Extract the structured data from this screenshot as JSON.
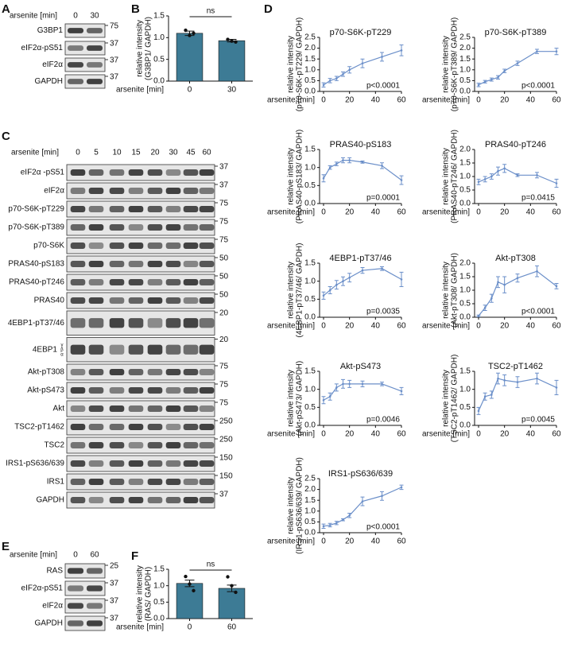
{
  "letters": [
    "A",
    "B",
    "C",
    "D",
    "E",
    "F"
  ],
  "blots": [
    {
      "lane_header": "arsenite [min]",
      "lanes": [
        "0",
        "30"
      ],
      "rows": [
        {
          "label": "G3BP1",
          "mw": "75"
        },
        {
          "label": "eIF2α-pS51",
          "mw": "37"
        },
        {
          "label": "eIF2α",
          "mw": "37"
        },
        {
          "label": "GAPDH",
          "mw": "37"
        }
      ]
    },
    {
      "lane_header": "arsenite [min]",
      "lanes": [
        "0",
        "5",
        "10",
        "15",
        "20",
        "30",
        "45",
        "60"
      ],
      "rows": [
        {
          "label": "eIF2α -pS51",
          "mw": "37"
        },
        {
          "label": "eIF2α",
          "mw": "37"
        },
        {
          "label": "p70-S6K-pT229",
          "mw": "75"
        },
        {
          "label": "p70-S6K-pT389",
          "mw": "75"
        },
        {
          "label": "p70-S6K",
          "mw": "75"
        },
        {
          "label": "PRAS40-pS183",
          "mw": "50"
        },
        {
          "label": "PRAS40-pT246",
          "mw": "50"
        },
        {
          "label": "PRAS40",
          "mw": "50"
        },
        {
          "label": "4EBP1-pT37/46",
          "mw": "20"
        },
        {
          "label": "4EBP1",
          "sublabels": [
            "γ",
            "β",
            "α"
          ],
          "mw": "20"
        },
        {
          "label": "Akt-pT308",
          "mw": "75"
        },
        {
          "label": "Akt-pS473",
          "mw": "75"
        },
        {
          "label": "Akt",
          "mw": "75"
        },
        {
          "label": "TSC2-pT1462",
          "mw": "250"
        },
        {
          "label": "TSC2",
          "mw": "250"
        },
        {
          "label": "IRS1-pS636/639",
          "mw": "150"
        },
        {
          "label": "IRS1",
          "mw": "150"
        },
        {
          "label": "GAPDH",
          "mw": "37"
        }
      ]
    },
    {
      "lane_header": "arsenite [min]",
      "lanes": [
        "0",
        "60"
      ],
      "rows": [
        {
          "label": "RAS",
          "mw": "25"
        },
        {
          "label": "eIF2α-pS51",
          "mw": "37"
        },
        {
          "label": "eIF2α",
          "mw": "37"
        },
        {
          "label": "GAPDH",
          "mw": "37"
        }
      ]
    }
  ],
  "chart_data": [
    {
      "type": "bar",
      "ylabel": [
        "relative intensity",
        "(G3BP1/ GAPDH)"
      ],
      "xlabel": "arsenite [min]",
      "categories": [
        "0",
        "30"
      ],
      "values": [
        1.1,
        0.93
      ],
      "errors": [
        0.05,
        0.03
      ],
      "points": [
        [
          1.17,
          1.05,
          1.1
        ],
        [
          0.96,
          0.92,
          0.9
        ]
      ],
      "color": "#3d7b95",
      "annotation": "ns",
      "ylim": [
        0,
        1.5
      ],
      "yticks": [
        {
          "value": 0,
          "label": "0.0"
        },
        0.5,
        {
          "value": 1,
          "label": "1.0"
        },
        1.5
      ]
    },
    {
      "type": "bar",
      "ylabel": [
        "relative intensity",
        "(RAS/ GAPDH)"
      ],
      "xlabel": "arsenite [min]",
      "categories": [
        "0",
        "60"
      ],
      "values": [
        1.07,
        0.92
      ],
      "errors": [
        0.1,
        0.1
      ],
      "points": [
        [
          1.28,
          1.05,
          0.85
        ],
        [
          1.27,
          1.0,
          0.8
        ]
      ],
      "color": "#3d7b95",
      "annotation": "ns",
      "ylim": [
        0,
        1.5
      ],
      "yticks": [
        {
          "value": 0,
          "label": "0.0"
        },
        0.5,
        {
          "value": 1,
          "label": "1.0"
        },
        1.5
      ]
    },
    {
      "type": "line",
      "title": "p70-S6K-pT229",
      "ylabel": [
        "relative intensity",
        "(p70-S6K-pT229/ GAPDH)"
      ],
      "xlabel": "arsenite [min]",
      "annotation": "p<0.0001",
      "color": "#6b8fc9",
      "x": [
        0,
        5,
        10,
        15,
        20,
        30,
        45,
        60
      ],
      "values": [
        0.3,
        0.5,
        0.6,
        0.8,
        1.0,
        1.3,
        1.6,
        1.9
      ],
      "errors": [
        0.1,
        0.1,
        0.1,
        0.1,
        0.15,
        0.2,
        0.2,
        0.25
      ],
      "xlim": [
        0,
        60
      ],
      "xticks": [
        0,
        20,
        40,
        60
      ],
      "ylim": [
        0,
        2.5
      ],
      "yticks": [
        {
          "value": 0,
          "label": "0.0"
        },
        0.5,
        {
          "value": 1,
          "label": "1.0"
        },
        1.5,
        {
          "value": 2,
          "label": "2.0"
        },
        2.5
      ]
    },
    {
      "type": "line",
      "title": "p70-S6K-pT389",
      "ylabel": [
        "relative intensity",
        "(p70-S6K-pT389/ GAPDH)"
      ],
      "xlabel": "arsenite [min]",
      "annotation": "p<0.0001",
      "color": "#6b8fc9",
      "x": [
        0,
        5,
        10,
        15,
        20,
        30,
        45,
        60
      ],
      "values": [
        0.3,
        0.45,
        0.55,
        0.65,
        0.95,
        1.3,
        1.85,
        1.85
      ],
      "errors": [
        0.08,
        0.06,
        0.07,
        0.08,
        0.08,
        0.1,
        0.1,
        0.15
      ],
      "xlim": [
        0,
        60
      ],
      "xticks": [
        0,
        20,
        40,
        60
      ],
      "ylim": [
        0,
        2.5
      ],
      "yticks": [
        {
          "value": 0,
          "label": "0.0"
        },
        0.5,
        {
          "value": 1,
          "label": "1.0"
        },
        1.5,
        {
          "value": 2,
          "label": "2.0"
        },
        2.5
      ]
    },
    {
      "type": "line",
      "title": "PRAS40-pS183",
      "ylabel": [
        "relative intensity",
        "(PRAS40-pS183/ GAPDH)"
      ],
      "xlabel": "arsenite [min]",
      "annotation": "p=0.0001",
      "color": "#6b8fc9",
      "x": [
        0,
        5,
        10,
        15,
        20,
        30,
        45,
        60
      ],
      "values": [
        0.7,
        1.0,
        1.1,
        1.2,
        1.2,
        1.15,
        1.05,
        0.65
      ],
      "errors": [
        0.1,
        0.05,
        0.05,
        0.07,
        0.07,
        0.03,
        0.08,
        0.12
      ],
      "xlim": [
        0,
        60
      ],
      "xticks": [
        0,
        20,
        40,
        60
      ],
      "ylim": [
        0,
        1.5
      ],
      "yticks": [
        {
          "value": 0,
          "label": "0.0"
        },
        0.5,
        {
          "value": 1,
          "label": "1.0"
        },
        1.5
      ]
    },
    {
      "type": "line",
      "title": "PRAS40-pT246",
      "ylabel": [
        "relative intensity",
        "(PRAS40-pT246/ GAPDH)"
      ],
      "xlabel": "arsenite [min]",
      "annotation": "p=0.0415",
      "color": "#6b8fc9",
      "x": [
        0,
        5,
        10,
        15,
        20,
        30,
        45,
        60
      ],
      "values": [
        0.8,
        0.9,
        1.0,
        1.2,
        1.3,
        1.05,
        1.05,
        0.75
      ],
      "errors": [
        0.1,
        0.1,
        0.1,
        0.15,
        0.15,
        0.05,
        0.1,
        0.15
      ],
      "xlim": [
        0,
        60
      ],
      "xticks": [
        0,
        20,
        40,
        60
      ],
      "ylim": [
        0,
        2.0
      ],
      "yticks": [
        {
          "value": 0,
          "label": "0.0"
        },
        0.5,
        {
          "value": 1,
          "label": "1.0"
        },
        1.5,
        {
          "value": 2,
          "label": "2.0"
        }
      ]
    },
    {
      "type": "line",
      "title": "4EBP1-pT37/46",
      "ylabel": [
        "relative intensity",
        "(4EBP1-pT37/46/ GAPDH)"
      ],
      "xlabel": "arsenite [min]",
      "annotation": "p=0.0035",
      "color": "#6b8fc9",
      "x": [
        0,
        5,
        10,
        15,
        20,
        30,
        45,
        60
      ],
      "values": [
        0.6,
        0.75,
        0.9,
        1.0,
        1.1,
        1.3,
        1.35,
        1.05
      ],
      "errors": [
        0.1,
        0.1,
        0.12,
        0.12,
        0.12,
        0.08,
        0.05,
        0.2
      ],
      "xlim": [
        0,
        60
      ],
      "xticks": [
        0,
        20,
        40,
        60
      ],
      "ylim": [
        0,
        1.5
      ],
      "yticks": [
        {
          "value": 0,
          "label": "0.0"
        },
        0.5,
        {
          "value": 1,
          "label": "1.0"
        },
        1.5
      ]
    },
    {
      "type": "line",
      "title": "Akt-pT308",
      "ylabel": [
        "relative intensity",
        "(Akt-pT308/ GAPDH)"
      ],
      "xlabel": "arsenite [min]",
      "annotation": "p<0.0001",
      "color": "#6b8fc9",
      "x": [
        0,
        5,
        10,
        15,
        20,
        30,
        45,
        60
      ],
      "values": [
        0.05,
        0.35,
        0.7,
        1.3,
        1.2,
        1.45,
        1.7,
        1.15
      ],
      "errors": [
        0.03,
        0.1,
        0.15,
        0.2,
        0.3,
        0.15,
        0.2,
        0.1
      ],
      "xlim": [
        0,
        60
      ],
      "xticks": [
        0,
        20,
        40,
        60
      ],
      "ylim": [
        0,
        2.0
      ],
      "yticks": [
        {
          "value": 0,
          "label": "0.0"
        },
        0.5,
        {
          "value": 1,
          "label": "1.0"
        },
        1.5,
        {
          "value": 2,
          "label": "2.0"
        }
      ]
    },
    {
      "type": "line",
      "title": "Akt-pS473",
      "ylabel": [
        "relative intensity",
        "(Akt-pS473/ GAPDH)"
      ],
      "xlabel": "arsenite [min]",
      "annotation": "p=0.0046",
      "color": "#6b8fc9",
      "x": [
        0,
        5,
        10,
        15,
        20,
        30,
        45,
        60
      ],
      "values": [
        0.7,
        0.8,
        1.05,
        1.15,
        1.15,
        1.15,
        1.15,
        0.95
      ],
      "errors": [
        0.1,
        0.1,
        0.1,
        0.12,
        0.1,
        0.08,
        0.05,
        0.1
      ],
      "xlim": [
        0,
        60
      ],
      "xticks": [
        0,
        20,
        40,
        60
      ],
      "ylim": [
        0,
        1.5
      ],
      "yticks": [
        {
          "value": 0,
          "label": "0.0"
        },
        0.5,
        {
          "value": 1,
          "label": "1.0"
        },
        1.5
      ]
    },
    {
      "type": "line",
      "title": "TSC2-pT1462",
      "ylabel": [
        "relative intensity",
        "(TSC2-pT1462/ GAPDH)"
      ],
      "xlabel": "arsenite [min]",
      "annotation": "p=0.0045",
      "color": "#6b8fc9",
      "x": [
        0,
        5,
        10,
        15,
        20,
        30,
        45,
        60
      ],
      "values": [
        0.4,
        0.8,
        0.85,
        1.3,
        1.25,
        1.2,
        1.3,
        1.05
      ],
      "errors": [
        0.1,
        0.1,
        0.1,
        0.15,
        0.15,
        0.15,
        0.15,
        0.2
      ],
      "xlim": [
        0,
        60
      ],
      "xticks": [
        0,
        20,
        40,
        60
      ],
      "ylim": [
        0,
        1.5
      ],
      "yticks": [
        {
          "value": 0,
          "label": "0.0"
        },
        0.5,
        {
          "value": 1,
          "label": "1.0"
        },
        1.5
      ]
    },
    {
      "type": "line",
      "title": "IRS1-pS636/639",
      "ylabel": [
        "relative intensity",
        "(IRS1-pS636/639/ GAPDH)"
      ],
      "xlabel": "arsenite [min]",
      "annotation": "p<0.0001",
      "color": "#6b8fc9",
      "x": [
        0,
        5,
        10,
        15,
        20,
        30,
        45,
        60
      ],
      "values": [
        0.3,
        0.35,
        0.45,
        0.6,
        0.8,
        1.45,
        1.7,
        2.1
      ],
      "errors": [
        0.1,
        0.08,
        0.08,
        0.05,
        0.1,
        0.2,
        0.2,
        0.1
      ],
      "xlim": [
        0,
        60
      ],
      "xticks": [
        0,
        20,
        40,
        60
      ],
      "ylim": [
        0,
        2.5
      ],
      "yticks": [
        {
          "value": 0,
          "label": "0.0"
        },
        0.5,
        {
          "value": 1,
          "label": "1.0"
        },
        1.5,
        {
          "value": 2,
          "label": "2.0"
        },
        2.5
      ]
    }
  ]
}
